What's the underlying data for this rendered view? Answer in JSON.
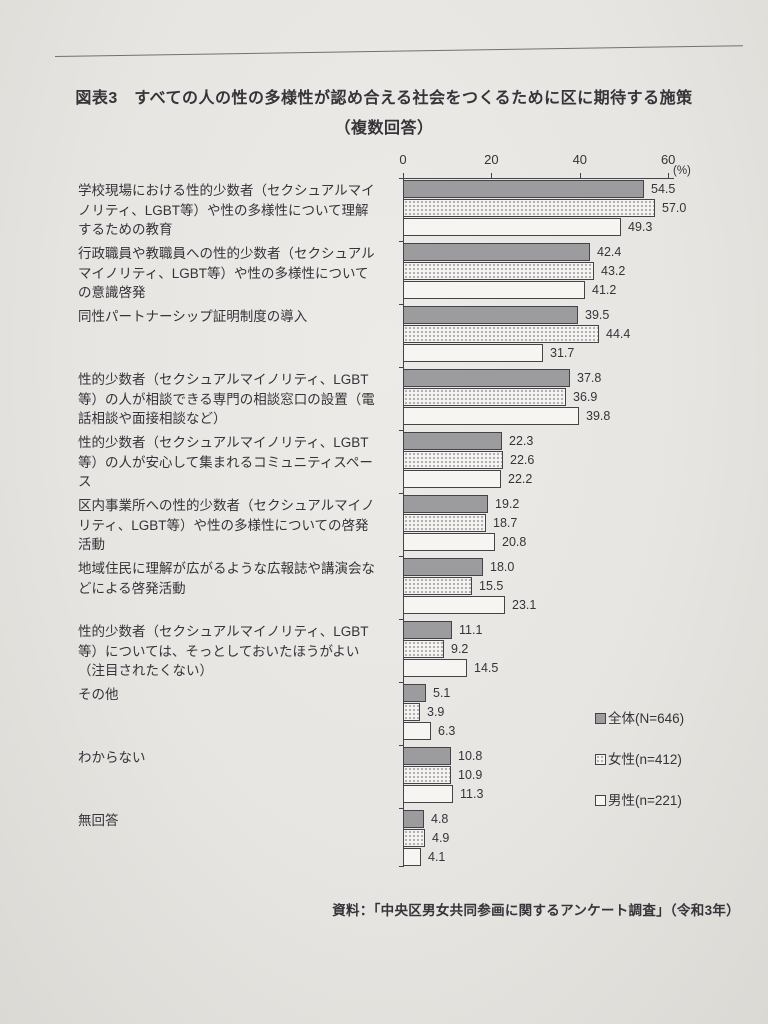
{
  "figure": {
    "title_line1": "図表3　すべての人の性の多様性が認め合える社会をつくるために区に期待する施策",
    "title_line2": "（複数回答）",
    "source": "資料：「中央区男女共同参画に関するアンケート調査」（令和3年）"
  },
  "chart_data": {
    "type": "bar",
    "orientation": "horizontal",
    "title": "図表3　すべての人の性の多様性が認め合える社会をつくるために区に期待する施策（複数回答）",
    "xlabel": "",
    "ylabel": "",
    "x_axis_unit": "(%)",
    "x_axis_ticks": [
      0,
      20,
      40,
      60
    ],
    "xlim": [
      0,
      60
    ],
    "grid": false,
    "legend_position": "right-bottom",
    "source": "資料：「中央区男女共同参画に関するアンケート調査」（令和3年）",
    "categories": [
      "学校現場における性的少数者（セクシュアルマイノリティ、LGBT等）や性の多様性について理解するための教育",
      "行政職員や教職員への性的少数者（セクシュアルマイノリティ、LGBT等）や性の多様性についての意識啓発",
      "同性パートナーシップ証明制度の導入",
      "性的少数者（セクシュアルマイノリティ、LGBT等）の人が相談できる専門の相談窓口の設置（電話相談や面接相談など）",
      "性的少数者（セクシュアルマイノリティ、LGBT等）の人が安心して集まれるコミュニティスペース",
      "区内事業所への性的少数者（セクシュアルマイノリティ、LGBT等）や性の多様性についての啓発活動",
      "地域住民に理解が広がるような広報誌や講演会などによる啓発活動",
      "性的少数者（セクシュアルマイノリティ、LGBT等）については、そっとしておいたほうがよい（注目されたくない）",
      "その他",
      "わからない",
      "無回答"
    ],
    "series": [
      {
        "name": "全体(N=646)",
        "pattern": "solid-gray",
        "color": "#9c9c9f",
        "values": [
          54.5,
          42.4,
          39.5,
          37.8,
          22.3,
          19.2,
          18.0,
          11.1,
          5.1,
          10.8,
          4.8
        ]
      },
      {
        "name": "女性(n=412)",
        "pattern": "dotted",
        "color": "#f6f5f1",
        "values": [
          57.0,
          43.2,
          44.4,
          36.9,
          22.6,
          18.7,
          15.5,
          9.2,
          3.9,
          10.9,
          4.9
        ]
      },
      {
        "name": "男性(n=221)",
        "pattern": "white",
        "color": "#f6f5f1",
        "values": [
          49.3,
          41.2,
          31.7,
          39.8,
          22.2,
          20.8,
          23.1,
          14.5,
          6.3,
          11.3,
          4.1
        ]
      }
    ]
  }
}
